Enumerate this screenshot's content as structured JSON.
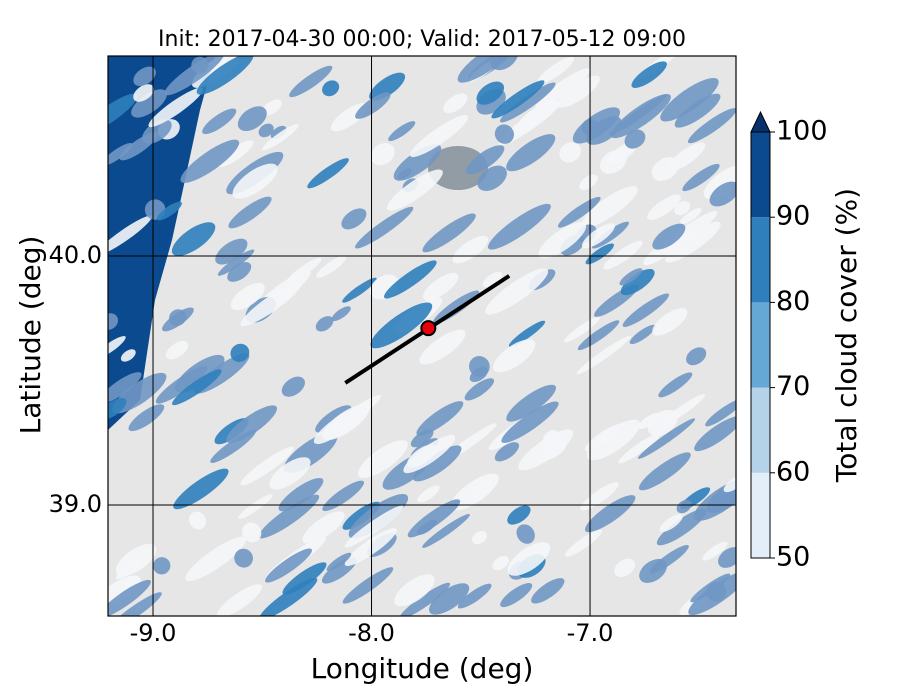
{
  "chart_data": {
    "type": "map",
    "title": "Init: 2017-04-30 00:00; Valid: 2017-05-12 09:00",
    "x_label": "Longitude (deg)",
    "y_label": "Latitude (deg)",
    "xlim": [
      -9.206,
      -6.332
    ],
    "ylim": [
      38.554,
      40.803
    ],
    "xticks": [
      {
        "value": -9,
        "label": "-9.0"
      },
      {
        "value": -8,
        "label": "-8.0"
      },
      {
        "value": -7,
        "label": "-7.0"
      }
    ],
    "yticks": [
      {
        "value": 39,
        "label": "39.0"
      },
      {
        "value": 40,
        "label": "40.0"
      }
    ],
    "grid": true,
    "transect": {
      "lon": [
        -8.12,
        -7.37
      ],
      "lat": [
        39.49,
        39.92
      ]
    },
    "marker": {
      "lon": -7.74,
      "lat": 39.71,
      "color": "#e8000b"
    },
    "colorbar": {
      "label": "Total cloud cover (%)",
      "lim": [
        50,
        100
      ],
      "ticks": [
        50,
        60,
        70,
        80,
        90,
        100
      ],
      "colors": [
        "#e3eef9",
        "#b4d3e9",
        "#66a8d5",
        "#2f7fbd",
        "#0b4a8f"
      ],
      "extend_color": "#08306b"
    }
  }
}
